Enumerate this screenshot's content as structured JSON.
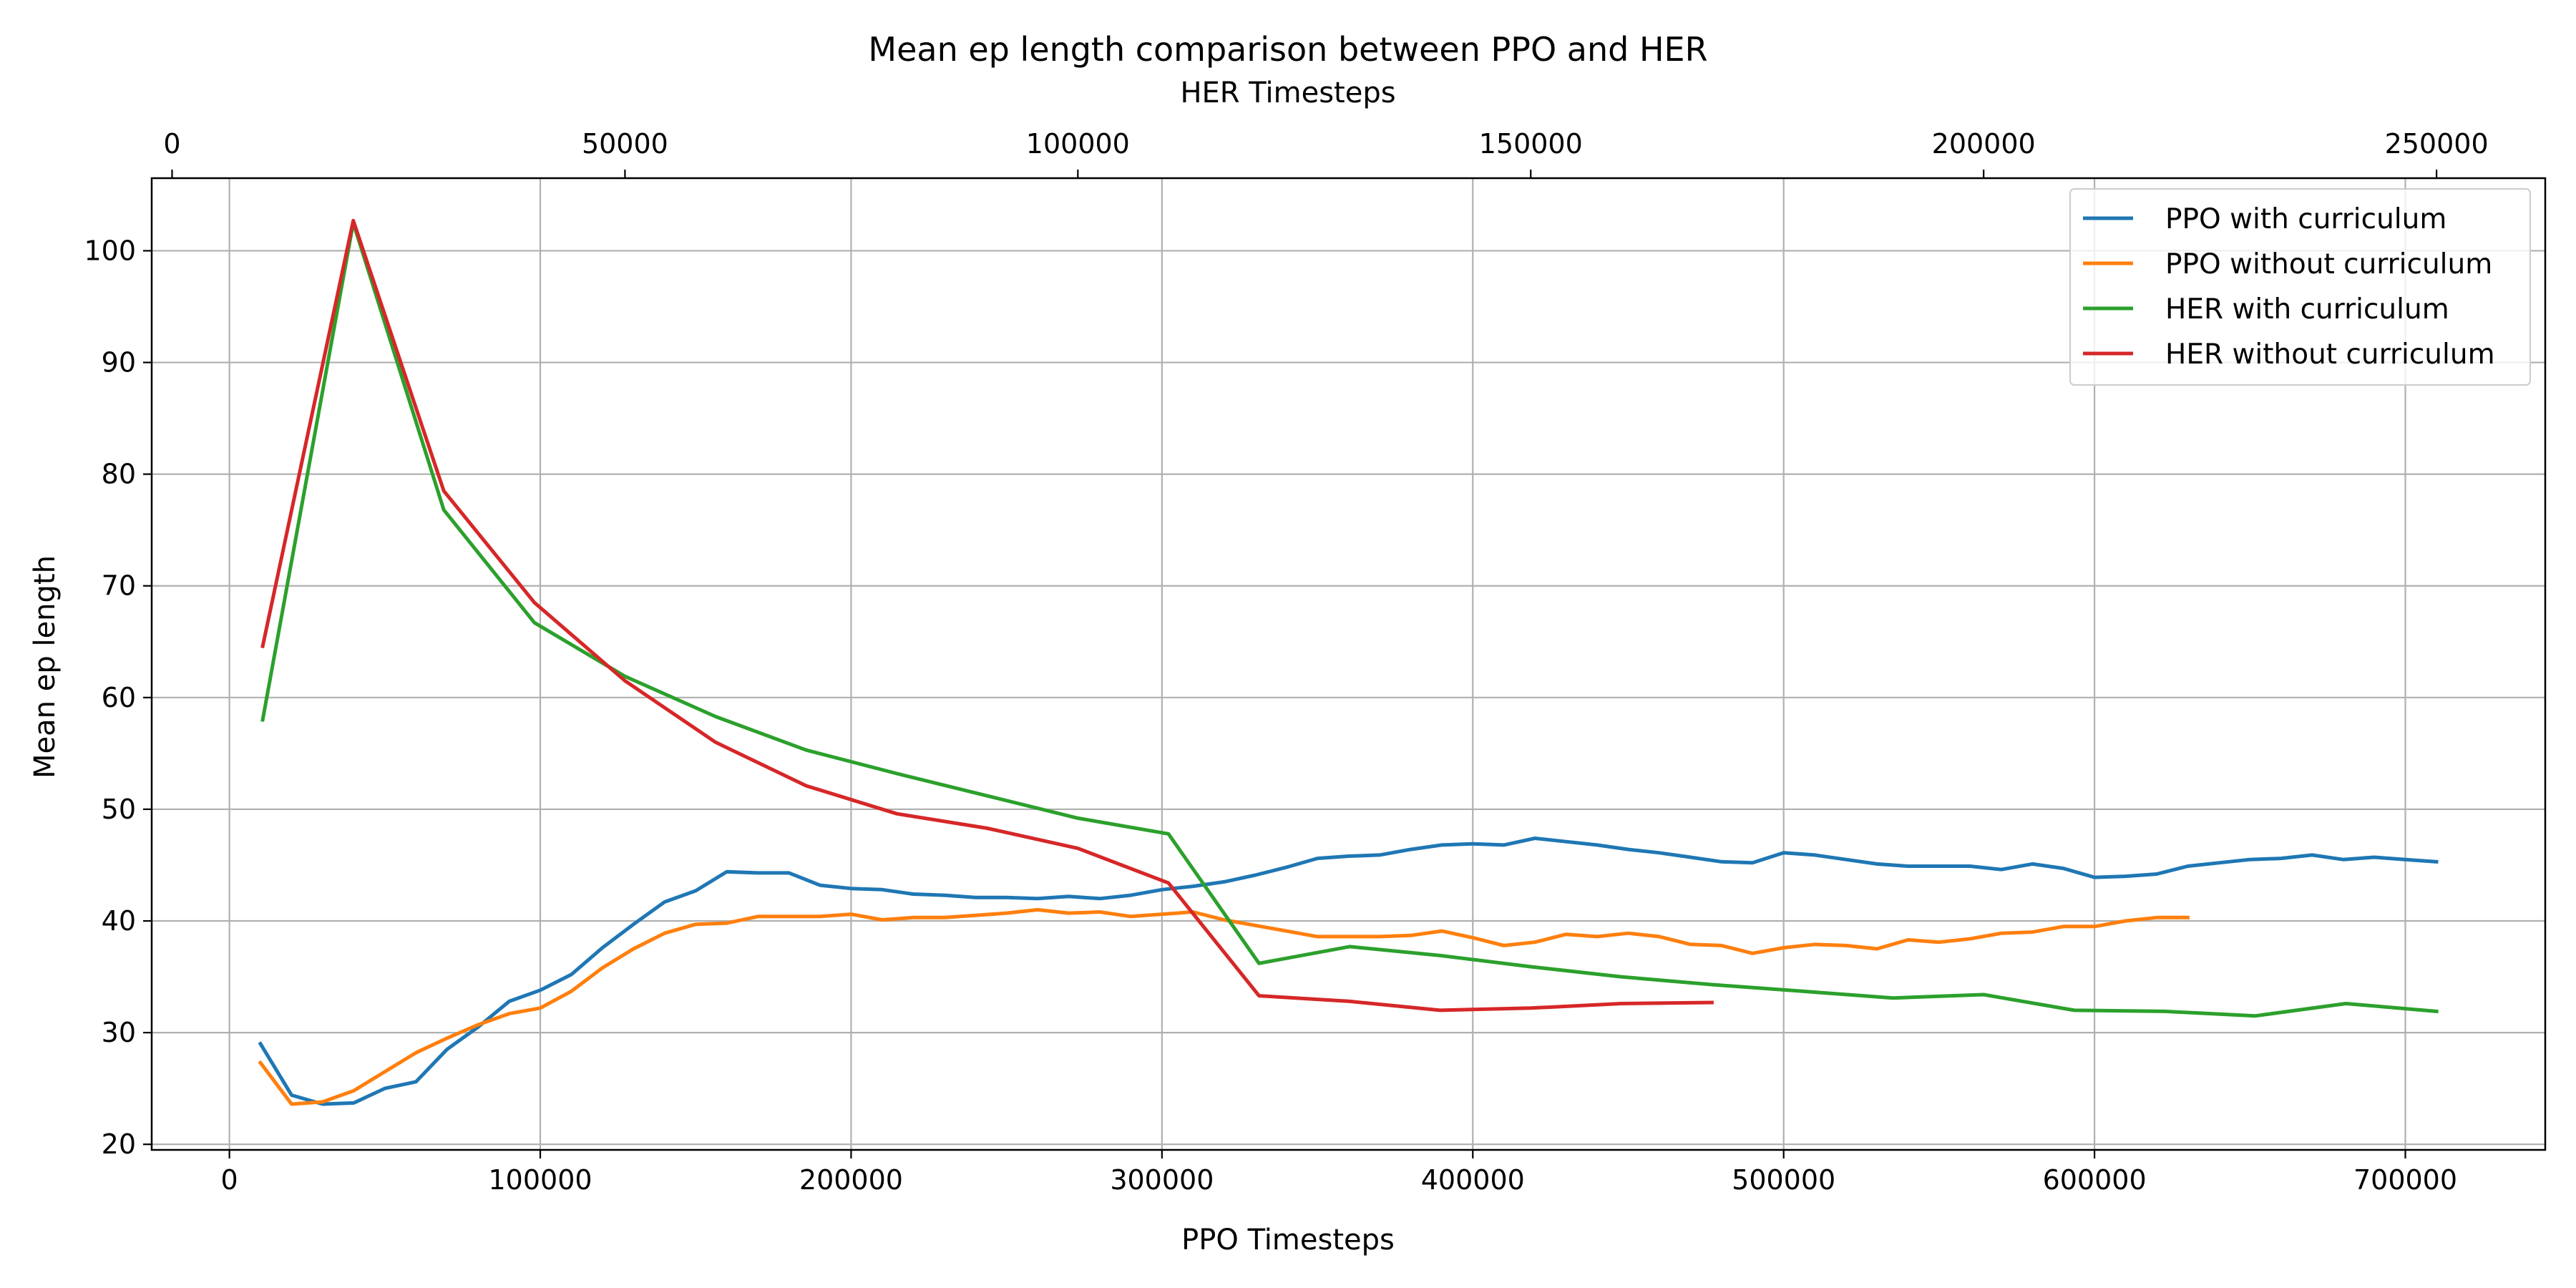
{
  "chart_data": {
    "type": "line",
    "title": "Mean ep length comparison between PPO and HER",
    "xlabel": "PPO Timesteps",
    "x2label": "HER Timesteps",
    "ylabel": "Mean ep length",
    "xlim": [
      -25000,
      745000
    ],
    "x2lim": [
      -2250,
      262000
    ],
    "ylim": [
      19.5,
      106.5
    ],
    "x_ticks": [
      0,
      100000,
      200000,
      300000,
      400000,
      500000,
      600000,
      700000
    ],
    "x2_ticks": [
      0,
      50000,
      100000,
      150000,
      200000,
      250000
    ],
    "y_ticks": [
      20,
      30,
      40,
      50,
      60,
      70,
      80,
      90,
      100
    ],
    "grid": true,
    "legend_position": "top-right",
    "series": [
      {
        "name": "PPO with curriculum",
        "axis": "bottom",
        "color": "#1f77b4",
        "points": [
          [
            10000,
            29.0
          ],
          [
            20000,
            24.4
          ],
          [
            30000,
            23.6
          ],
          [
            40000,
            23.7
          ],
          [
            50000,
            25.0
          ],
          [
            60000,
            25.6
          ],
          [
            70000,
            28.5
          ],
          [
            80000,
            30.5
          ],
          [
            90000,
            32.8
          ],
          [
            100000,
            33.8
          ],
          [
            110000,
            35.2
          ],
          [
            120000,
            37.6
          ],
          [
            130000,
            39.7
          ],
          [
            140000,
            41.7
          ],
          [
            150000,
            42.7
          ],
          [
            160000,
            44.4
          ],
          [
            170000,
            44.3
          ],
          [
            180000,
            44.3
          ],
          [
            190000,
            43.2
          ],
          [
            200000,
            42.9
          ],
          [
            210000,
            42.8
          ],
          [
            220000,
            42.4
          ],
          [
            230000,
            42.3
          ],
          [
            240000,
            42.1
          ],
          [
            250000,
            42.1
          ],
          [
            260000,
            42.0
          ],
          [
            270000,
            42.2
          ],
          [
            280000,
            42.0
          ],
          [
            290000,
            42.3
          ],
          [
            300000,
            42.8
          ],
          [
            310000,
            43.1
          ],
          [
            320000,
            43.5
          ],
          [
            330000,
            44.1
          ],
          [
            340000,
            44.8
          ],
          [
            350000,
            45.6
          ],
          [
            360000,
            45.8
          ],
          [
            370000,
            45.9
          ],
          [
            380000,
            46.4
          ],
          [
            390000,
            46.8
          ],
          [
            400000,
            46.9
          ],
          [
            410000,
            46.8
          ],
          [
            420000,
            47.4
          ],
          [
            430000,
            47.1
          ],
          [
            440000,
            46.8
          ],
          [
            450000,
            46.4
          ],
          [
            460000,
            46.1
          ],
          [
            470000,
            45.7
          ],
          [
            480000,
            45.3
          ],
          [
            490000,
            45.2
          ],
          [
            500000,
            46.1
          ],
          [
            510000,
            45.9
          ],
          [
            520000,
            45.5
          ],
          [
            530000,
            45.1
          ],
          [
            540000,
            44.9
          ],
          [
            550000,
            44.9
          ],
          [
            560000,
            44.9
          ],
          [
            570000,
            44.6
          ],
          [
            580000,
            45.1
          ],
          [
            590000,
            44.7
          ],
          [
            600000,
            43.9
          ],
          [
            610000,
            44.0
          ],
          [
            620000,
            44.2
          ],
          [
            630000,
            44.9
          ],
          [
            640000,
            45.2
          ],
          [
            650000,
            45.5
          ],
          [
            660000,
            45.6
          ],
          [
            670000,
            45.9
          ],
          [
            680000,
            45.5
          ],
          [
            690000,
            45.7
          ],
          [
            700000,
            45.5
          ],
          [
            710000,
            45.3
          ]
        ]
      },
      {
        "name": "PPO without curriculum",
        "axis": "bottom",
        "color": "#ff7f0e",
        "points": [
          [
            10000,
            27.3
          ],
          [
            20000,
            23.6
          ],
          [
            30000,
            23.8
          ],
          [
            40000,
            24.8
          ],
          [
            50000,
            26.5
          ],
          [
            60000,
            28.2
          ],
          [
            70000,
            29.5
          ],
          [
            80000,
            30.7
          ],
          [
            90000,
            31.7
          ],
          [
            100000,
            32.2
          ],
          [
            110000,
            33.7
          ],
          [
            120000,
            35.8
          ],
          [
            130000,
            37.5
          ],
          [
            140000,
            38.9
          ],
          [
            150000,
            39.7
          ],
          [
            160000,
            39.8
          ],
          [
            170000,
            40.4
          ],
          [
            180000,
            40.4
          ],
          [
            190000,
            40.4
          ],
          [
            200000,
            40.6
          ],
          [
            210000,
            40.1
          ],
          [
            220000,
            40.3
          ],
          [
            230000,
            40.3
          ],
          [
            240000,
            40.5
          ],
          [
            250000,
            40.7
          ],
          [
            260000,
            41.0
          ],
          [
            270000,
            40.7
          ],
          [
            280000,
            40.8
          ],
          [
            290000,
            40.4
          ],
          [
            300000,
            40.6
          ],
          [
            310000,
            40.8
          ],
          [
            320000,
            40.1
          ],
          [
            330000,
            39.6
          ],
          [
            340000,
            39.1
          ],
          [
            350000,
            38.6
          ],
          [
            360000,
            38.6
          ],
          [
            370000,
            38.6
          ],
          [
            380000,
            38.7
          ],
          [
            390000,
            39.1
          ],
          [
            400000,
            38.5
          ],
          [
            410000,
            37.8
          ],
          [
            420000,
            38.1
          ],
          [
            430000,
            38.8
          ],
          [
            440000,
            38.6
          ],
          [
            450000,
            38.9
          ],
          [
            460000,
            38.6
          ],
          [
            470000,
            37.9
          ],
          [
            480000,
            37.8
          ],
          [
            490000,
            37.1
          ],
          [
            500000,
            37.6
          ],
          [
            510000,
            37.9
          ],
          [
            520000,
            37.8
          ],
          [
            530000,
            37.5
          ],
          [
            540000,
            38.3
          ],
          [
            550000,
            38.1
          ],
          [
            560000,
            38.4
          ],
          [
            570000,
            38.9
          ],
          [
            580000,
            39.0
          ],
          [
            590000,
            39.5
          ],
          [
            600000,
            39.5
          ],
          [
            610000,
            40.0
          ],
          [
            620000,
            40.3
          ],
          [
            630000,
            40.3
          ]
        ]
      },
      {
        "name": "HER with curriculum",
        "axis": "top",
        "color": "#2ca02c",
        "points": [
          [
            10000,
            58.0
          ],
          [
            20000,
            102.5
          ],
          [
            30000,
            76.8
          ],
          [
            40000,
            66.7
          ],
          [
            50000,
            61.9
          ],
          [
            60000,
            58.3
          ],
          [
            70000,
            55.3
          ],
          [
            80000,
            53.2
          ],
          [
            90000,
            51.2
          ],
          [
            100000,
            49.2
          ],
          [
            110000,
            47.8
          ],
          [
            120000,
            36.2
          ],
          [
            130000,
            37.7
          ],
          [
            140000,
            36.9
          ],
          [
            150000,
            35.9
          ],
          [
            160000,
            35.0
          ],
          [
            170000,
            34.3
          ],
          [
            180000,
            33.7
          ],
          [
            190000,
            33.1
          ],
          [
            200000,
            33.4
          ],
          [
            210000,
            32.0
          ],
          [
            220000,
            31.9
          ],
          [
            230000,
            31.5
          ],
          [
            240000,
            32.6
          ],
          [
            250000,
            31.9
          ]
        ]
      },
      {
        "name": "HER without curriculum",
        "axis": "top",
        "color": "#d62728",
        "points": [
          [
            10000,
            64.6
          ],
          [
            20000,
            102.7
          ],
          [
            30000,
            78.5
          ],
          [
            40000,
            68.5
          ],
          [
            50000,
            61.5
          ],
          [
            60000,
            56.0
          ],
          [
            70000,
            52.1
          ],
          [
            80000,
            49.6
          ],
          [
            90000,
            48.3
          ],
          [
            100000,
            46.5
          ],
          [
            110000,
            43.4
          ],
          [
            120000,
            33.3
          ],
          [
            130000,
            32.8
          ],
          [
            140000,
            32.0
          ],
          [
            150000,
            32.2
          ],
          [
            160000,
            32.6
          ],
          [
            170000,
            32.7
          ]
        ]
      }
    ]
  }
}
